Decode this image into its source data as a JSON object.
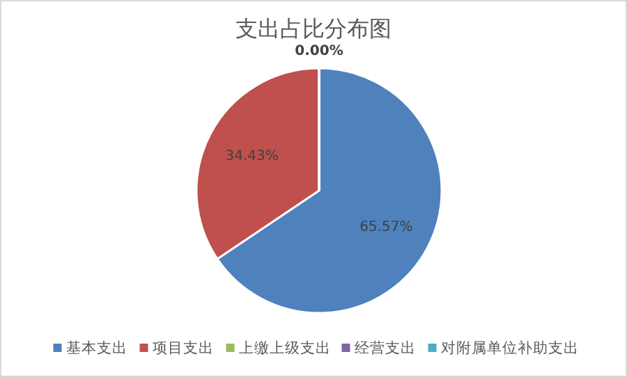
{
  "chart_data": {
    "type": "pie",
    "title": "支出占比分布图",
    "categories": [
      "基本支出",
      "项目支出",
      "上缴上级支出",
      "经营支出",
      "对附属单位补助支出"
    ],
    "values": [
      65.57,
      34.43,
      0,
      0,
      0
    ],
    "colors": [
      "#4f81bd",
      "#c0504d",
      "#9bbb59",
      "#8064a2",
      "#4bacc6"
    ],
    "value_labels": [
      "65.57%",
      "34.43%",
      "0.00%",
      null,
      null
    ],
    "legend": "bottom"
  }
}
